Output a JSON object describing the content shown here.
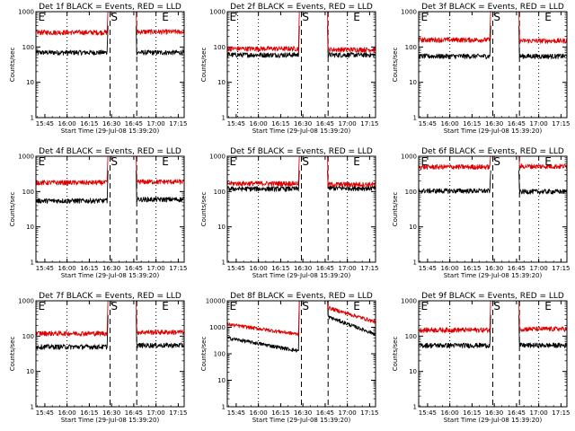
{
  "figure": {
    "background": "#ffffff",
    "events_color": "#000000",
    "lld_color": "#e00000"
  },
  "chart_data": [
    {
      "type": "line",
      "title": "Det 1f BLACK = Events, RED = LLD",
      "xlabel": "Start Time (29-Jul-08 15:39:20)",
      "ylabel": "Counts/sec",
      "yscale": "log",
      "ylim": [
        1,
        1000
      ],
      "xlim_min": [
        0,
        100
      ],
      "yticks": [
        "1",
        "10",
        "100",
        "1000"
      ],
      "xticks": [
        {
          "label": "15:45",
          "t": 6
        },
        {
          "label": "16:00",
          "t": 21
        },
        {
          "label": "16:15",
          "t": 36
        },
        {
          "label": "16:30",
          "t": 51
        },
        {
          "label": "16:45",
          "t": 66
        },
        {
          "label": "17:00",
          "t": 81
        },
        {
          "label": "17:15",
          "t": 96
        }
      ],
      "dotted_lines_t": [
        21,
        81
      ],
      "dashed_lines_t": [
        50,
        68
      ],
      "markers": [
        {
          "text": "E",
          "t": 1.5
        },
        {
          "text": "S",
          "t": 50.5
        },
        {
          "text": "E",
          "t": 85
        }
      ],
      "series": [
        {
          "name": "Events",
          "color": "#000000",
          "segments": [
            {
              "t0": 0,
              "t1": 48,
              "level": 70,
              "spike_in": null,
              "spike_out": 400
            },
            {
              "t0": 68,
              "t1": 100,
              "level": 70,
              "spike_in": 400,
              "spike_out": null
            }
          ]
        },
        {
          "name": "LLD",
          "color": "#e00000",
          "segments": [
            {
              "t0": 0,
              "t1": 48,
              "level": 260,
              "spike_in": null,
              "spike_out": 1100
            },
            {
              "t0": 68,
              "t1": 100,
              "level": 270,
              "spike_in": 1100,
              "spike_out": null
            }
          ]
        }
      ]
    },
    {
      "type": "line",
      "title": "Det 2f BLACK = Events, RED = LLD",
      "xlabel": "Start Time (29-Jul-08 15:39:20)",
      "ylabel": "Counts/sec",
      "yscale": "log",
      "ylim": [
        1,
        1000
      ],
      "xlim_min": [
        0,
        100
      ],
      "yticks": [
        "1",
        "10",
        "100",
        "1000"
      ],
      "xticks": [
        {
          "label": "15:45",
          "t": 6
        },
        {
          "label": "16:00",
          "t": 21
        },
        {
          "label": "16:15",
          "t": 36
        },
        {
          "label": "16:30",
          "t": 51
        },
        {
          "label": "16:45",
          "t": 66
        },
        {
          "label": "17:00",
          "t": 81
        },
        {
          "label": "17:15",
          "t": 96
        }
      ],
      "dotted_lines_t": [
        7,
        21,
        81
      ],
      "dashed_lines_t": [
        50,
        68
      ],
      "markers": [
        {
          "text": "E",
          "t": 1.5
        },
        {
          "text": "S",
          "t": 50.5
        },
        {
          "text": "E",
          "t": 85
        }
      ],
      "series": [
        {
          "name": "Events",
          "color": "#000000",
          "segments": [
            {
              "t0": 0,
              "t1": 48,
              "level": 60,
              "spike_in": null,
              "spike_out": 400
            },
            {
              "t0": 68,
              "t1": 100,
              "level": 60,
              "spike_in": 400,
              "spike_out": null
            }
          ]
        },
        {
          "name": "LLD",
          "color": "#e00000",
          "segments": [
            {
              "t0": 0,
              "t1": 48,
              "level": 90,
              "spike_in": null,
              "spike_out": 1100
            },
            {
              "t0": 68,
              "t1": 100,
              "level": 85,
              "spike_in": 1100,
              "spike_out": null
            }
          ]
        }
      ]
    },
    {
      "type": "line",
      "title": "Det 3f BLACK = Events, RED = LLD",
      "xlabel": "Start Time (29-Jul-08 15:39:20)",
      "ylabel": "Counts/sec",
      "yscale": "log",
      "ylim": [
        1,
        1000
      ],
      "xlim_min": [
        0,
        100
      ],
      "yticks": [
        "1",
        "10",
        "100",
        "1000"
      ],
      "xticks": [
        {
          "label": "15:45",
          "t": 6
        },
        {
          "label": "16:00",
          "t": 21
        },
        {
          "label": "16:15",
          "t": 36
        },
        {
          "label": "16:30",
          "t": 51
        },
        {
          "label": "16:45",
          "t": 66
        },
        {
          "label": "17:00",
          "t": 81
        },
        {
          "label": "17:15",
          "t": 96
        }
      ],
      "dotted_lines_t": [
        21,
        81
      ],
      "dashed_lines_t": [
        50,
        68
      ],
      "markers": [
        {
          "text": "E",
          "t": 1.5
        },
        {
          "text": "S",
          "t": 50.5
        },
        {
          "text": "E",
          "t": 85
        }
      ],
      "series": [
        {
          "name": "Events",
          "color": "#000000",
          "segments": [
            {
              "t0": 0,
              "t1": 48,
              "level": 55,
              "spike_in": null,
              "spike_out": 400
            },
            {
              "t0": 68,
              "t1": 100,
              "level": 55,
              "spike_in": 400,
              "spike_out": null
            }
          ]
        },
        {
          "name": "LLD",
          "color": "#e00000",
          "segments": [
            {
              "t0": 0,
              "t1": 48,
              "level": 160,
              "spike_in": null,
              "spike_out": 1100
            },
            {
              "t0": 68,
              "t1": 100,
              "level": 150,
              "spike_in": 1100,
              "spike_out": null
            }
          ]
        }
      ]
    },
    {
      "type": "line",
      "title": "Det 4f BLACK = Events, RED = LLD",
      "xlabel": "Start Time (29-Jul-08 15:39:20)",
      "ylabel": "Counts/sec",
      "yscale": "log",
      "ylim": [
        1,
        1000
      ],
      "xlim_min": [
        0,
        100
      ],
      "yticks": [
        "1",
        "10",
        "100",
        "1000"
      ],
      "xticks": [
        {
          "label": "15:45",
          "t": 6
        },
        {
          "label": "16:00",
          "t": 21
        },
        {
          "label": "16:15",
          "t": 36
        },
        {
          "label": "16:30",
          "t": 51
        },
        {
          "label": "16:45",
          "t": 66
        },
        {
          "label": "17:00",
          "t": 81
        },
        {
          "label": "17:15",
          "t": 96
        }
      ],
      "dotted_lines_t": [
        21,
        81
      ],
      "dashed_lines_t": [
        50,
        68
      ],
      "markers": [
        {
          "text": "E",
          "t": 1.5
        },
        {
          "text": "S",
          "t": 50.5
        },
        {
          "text": "E",
          "t": 85
        }
      ],
      "series": [
        {
          "name": "Events",
          "color": "#000000",
          "segments": [
            {
              "t0": 0,
              "t1": 48,
              "level": 55,
              "spike_in": null,
              "spike_out": 400
            },
            {
              "t0": 68,
              "t1": 100,
              "level": 60,
              "spike_in": 400,
              "spike_out": null
            }
          ]
        },
        {
          "name": "LLD",
          "color": "#e00000",
          "segments": [
            {
              "t0": 0,
              "t1": 48,
              "level": 180,
              "spike_in": null,
              "spike_out": 1100
            },
            {
              "t0": 68,
              "t1": 100,
              "level": 190,
              "spike_in": 1100,
              "spike_out": null
            }
          ]
        }
      ]
    },
    {
      "type": "line",
      "title": "Det 5f BLACK = Events, RED = LLD",
      "xlabel": "Start Time (29-Jul-08 15:39:20)",
      "ylabel": "Counts/sec",
      "yscale": "log",
      "ylim": [
        1,
        1000
      ],
      "xlim_min": [
        0,
        100
      ],
      "yticks": [
        "1",
        "10",
        "100",
        "1000"
      ],
      "xticks": [
        {
          "label": "15:45",
          "t": 6
        },
        {
          "label": "16:00",
          "t": 21
        },
        {
          "label": "16:15",
          "t": 36
        },
        {
          "label": "16:30",
          "t": 51
        },
        {
          "label": "16:45",
          "t": 66
        },
        {
          "label": "17:00",
          "t": 81
        },
        {
          "label": "17:15",
          "t": 96
        }
      ],
      "dotted_lines_t": [
        21,
        81
      ],
      "dashed_lines_t": [
        50,
        68
      ],
      "markers": [
        {
          "text": "E",
          "t": 1.5
        },
        {
          "text": "S",
          "t": 50.5
        },
        {
          "text": "E",
          "t": 85
        }
      ],
      "series": [
        {
          "name": "Events",
          "color": "#000000",
          "segments": [
            {
              "t0": 0,
              "t1": 48,
              "level": 120,
              "spike_in": null,
              "spike_out": 400
            },
            {
              "t0": 68,
              "t1": 100,
              "level": 125,
              "spike_in": 400,
              "spike_out": null
            }
          ]
        },
        {
          "name": "LLD",
          "color": "#e00000",
          "segments": [
            {
              "t0": 0,
              "t1": 48,
              "level": 170,
              "spike_in": null,
              "spike_out": 1100
            },
            {
              "t0": 68,
              "t1": 100,
              "level": 160,
              "spike_in": 1100,
              "spike_out": null
            }
          ]
        }
      ]
    },
    {
      "type": "line",
      "title": "Det 6f BLACK = Events, RED = LLD",
      "xlabel": "Start Time (29-Jul-08 15:39:20)",
      "ylabel": "Counts/sec",
      "yscale": "log",
      "ylim": [
        1,
        1000
      ],
      "xlim_min": [
        0,
        100
      ],
      "yticks": [
        "1",
        "10",
        "100",
        "1000"
      ],
      "xticks": [
        {
          "label": "15:45",
          "t": 6
        },
        {
          "label": "16:00",
          "t": 21
        },
        {
          "label": "16:15",
          "t": 36
        },
        {
          "label": "16:30",
          "t": 51
        },
        {
          "label": "16:45",
          "t": 66
        },
        {
          "label": "17:00",
          "t": 81
        },
        {
          "label": "17:15",
          "t": 96
        }
      ],
      "dotted_lines_t": [
        21,
        81
      ],
      "dashed_lines_t": [
        50,
        68
      ],
      "markers": [
        {
          "text": "E",
          "t": 1.5
        },
        {
          "text": "S",
          "t": 50.5
        },
        {
          "text": "E",
          "t": 85
        }
      ],
      "series": [
        {
          "name": "Events",
          "color": "#000000",
          "segments": [
            {
              "t0": 0,
              "t1": 48,
              "level": 105,
              "spike_in": null,
              "spike_out": 400
            },
            {
              "t0": 68,
              "t1": 100,
              "level": 100,
              "spike_in": 400,
              "spike_out": null
            }
          ]
        },
        {
          "name": "LLD",
          "color": "#e00000",
          "segments": [
            {
              "t0": 0,
              "t1": 48,
              "level": 500,
              "spike_in": null,
              "spike_out": 1100
            },
            {
              "t0": 68,
              "t1": 100,
              "level": 520,
              "spike_in": 1100,
              "spike_out": null
            }
          ]
        }
      ]
    },
    {
      "type": "line",
      "title": "Det 7f BLACK = Events, RED = LLD",
      "xlabel": "Start Time (29-Jul-08 15:39:20)",
      "ylabel": "Counts/sec",
      "yscale": "log",
      "ylim": [
        1,
        1000
      ],
      "xlim_min": [
        0,
        100
      ],
      "yticks": [
        "1",
        "10",
        "100",
        "1000"
      ],
      "xticks": [
        {
          "label": "15:45",
          "t": 6
        },
        {
          "label": "16:00",
          "t": 21
        },
        {
          "label": "16:15",
          "t": 36
        },
        {
          "label": "16:30",
          "t": 51
        },
        {
          "label": "16:45",
          "t": 66
        },
        {
          "label": "17:00",
          "t": 81
        },
        {
          "label": "17:15",
          "t": 96
        }
      ],
      "dotted_lines_t": [
        21,
        81
      ],
      "dashed_lines_t": [
        50,
        68
      ],
      "markers": [
        {
          "text": "E",
          "t": 1.5
        },
        {
          "text": "S",
          "t": 50.5
        },
        {
          "text": "E",
          "t": 85
        }
      ],
      "series": [
        {
          "name": "Events",
          "color": "#000000",
          "segments": [
            {
              "t0": 0,
              "t1": 48,
              "level": 50,
              "spike_in": null,
              "spike_out": 400
            },
            {
              "t0": 68,
              "t1": 100,
              "level": 55,
              "spike_in": 400,
              "spike_out": null
            }
          ]
        },
        {
          "name": "LLD",
          "color": "#e00000",
          "segments": [
            {
              "t0": 0,
              "t1": 48,
              "level": 120,
              "spike_in": null,
              "spike_out": 1100
            },
            {
              "t0": 68,
              "t1": 100,
              "level": 130,
              "spike_in": 1100,
              "spike_out": null
            }
          ]
        }
      ]
    },
    {
      "type": "line",
      "title": "Det 8f BLACK = Events, RED = LLD",
      "xlabel": "Start Time (29-Jul-08 15:39:20)",
      "ylabel": "Counts/sec",
      "yscale": "log",
      "ylim": [
        1,
        10000
      ],
      "xlim_min": [
        0,
        100
      ],
      "yticks": [
        "1",
        "10",
        "100",
        "1000",
        "10000"
      ],
      "xticks": [
        {
          "label": "15:45",
          "t": 6
        },
        {
          "label": "16:00",
          "t": 21
        },
        {
          "label": "16:15",
          "t": 36
        },
        {
          "label": "16:30",
          "t": 51
        },
        {
          "label": "16:45",
          "t": 66
        },
        {
          "label": "17:00",
          "t": 81
        },
        {
          "label": "17:15",
          "t": 96
        }
      ],
      "dotted_lines_t": [
        21,
        81
      ],
      "dashed_lines_t": [
        50,
        68
      ],
      "markers": [
        {
          "text": "E",
          "t": 1.5
        },
        {
          "text": "S",
          "t": 50.5
        },
        {
          "text": "E",
          "t": 85
        }
      ],
      "series": [
        {
          "name": "Events",
          "color": "#000000",
          "segments": [
            {
              "t0": 0,
              "t1": 48,
              "level": 400,
              "level_end": 130,
              "spike_in": null,
              "spike_out": 11000
            },
            {
              "t0": 68,
              "t1": 100,
              "level": 2500,
              "level_end": 550,
              "spike_in": 11000,
              "spike_out": null
            }
          ]
        },
        {
          "name": "LLD",
          "color": "#e00000",
          "segments": [
            {
              "t0": 0,
              "t1": 48,
              "level": 1300,
              "level_end": 550,
              "spike_in": null,
              "spike_out": 11000
            },
            {
              "t0": 68,
              "t1": 100,
              "level": 5500,
              "level_end": 1600,
              "spike_in": 11000,
              "spike_out": null
            }
          ]
        }
      ]
    },
    {
      "type": "line",
      "title": "Det 9f BLACK = Events, RED = LLD",
      "xlabel": "Start Time (29-Jul-08 15:39:20)",
      "ylabel": "Counts/sec",
      "yscale": "log",
      "ylim": [
        1,
        1000
      ],
      "xlim_min": [
        0,
        100
      ],
      "yticks": [
        "1",
        "10",
        "100",
        "1000"
      ],
      "xticks": [
        {
          "label": "15:45",
          "t": 6
        },
        {
          "label": "16:00",
          "t": 21
        },
        {
          "label": "16:15",
          "t": 36
        },
        {
          "label": "16:30",
          "t": 51
        },
        {
          "label": "16:45",
          "t": 66
        },
        {
          "label": "17:00",
          "t": 81
        },
        {
          "label": "17:15",
          "t": 96
        }
      ],
      "dotted_lines_t": [
        21,
        81
      ],
      "dashed_lines_t": [
        50,
        68
      ],
      "markers": [
        {
          "text": "E",
          "t": 1.5
        },
        {
          "text": "S",
          "t": 50.5
        },
        {
          "text": "E",
          "t": 85
        }
      ],
      "series": [
        {
          "name": "Events",
          "color": "#000000",
          "segments": [
            {
              "t0": 0,
              "t1": 48,
              "level": 55,
              "spike_in": null,
              "spike_out": 400
            },
            {
              "t0": 68,
              "t1": 100,
              "level": 55,
              "spike_in": 400,
              "spike_out": null
            }
          ]
        },
        {
          "name": "LLD",
          "color": "#e00000",
          "segments": [
            {
              "t0": 0,
              "t1": 48,
              "level": 150,
              "spike_in": null,
              "spike_out": 1100
            },
            {
              "t0": 68,
              "t1": 100,
              "level": 160,
              "spike_in": 1100,
              "spike_out": null
            }
          ]
        }
      ]
    }
  ]
}
